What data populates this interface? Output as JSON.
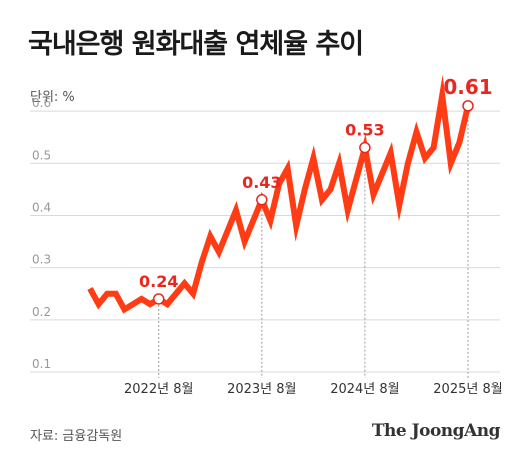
{
  "header": {
    "title": "국내은행 원화대출 연체율 추이",
    "unit": "단위: %"
  },
  "footer": {
    "source": "자료: 금융감독원",
    "brand": "The JoongAng"
  },
  "colors": {
    "line": "#ff3c14",
    "label": "#e8281e",
    "grid": "#d9d9d9",
    "axis_text": "#999999",
    "tick_text": "#333333"
  },
  "chart_data": {
    "type": "line",
    "title": "국내은행 원화대출 연체율 추이",
    "ylabel": "단위: %",
    "ylim": [
      0.1,
      0.65
    ],
    "y_ticks": [
      "0.1",
      "0.2",
      "0.3",
      "0.4",
      "0.5",
      "0.6"
    ],
    "x_ticks": [
      {
        "label": "2022년 8월",
        "x": "2022-08"
      },
      {
        "label": "2023년 8월",
        "x": "2023-08"
      },
      {
        "label": "2024년 8월",
        "x": "2024-08"
      },
      {
        "label": "2025년 8월",
        "x": "2025-08"
      }
    ],
    "x": [
      "2021-12",
      "2022-01",
      "2022-02",
      "2022-03",
      "2022-04",
      "2022-05",
      "2022-06",
      "2022-07",
      "2022-08",
      "2022-09",
      "2022-10",
      "2022-11",
      "2022-12",
      "2023-01",
      "2023-02",
      "2023-03",
      "2023-04",
      "2023-05",
      "2023-06",
      "2023-07",
      "2023-08",
      "2023-09",
      "2023-10",
      "2023-11",
      "2023-12",
      "2024-01",
      "2024-02",
      "2024-03",
      "2024-04",
      "2024-05",
      "2024-06",
      "2024-07",
      "2024-08",
      "2024-09",
      "2024-10",
      "2024-11",
      "2024-12",
      "2025-01",
      "2025-02",
      "2025-03",
      "2025-04",
      "2025-05",
      "2025-06",
      "2025-07",
      "2025-08"
    ],
    "series": [
      {
        "values": [
          0.26,
          0.23,
          0.25,
          0.25,
          0.22,
          0.23,
          0.24,
          0.23,
          0.24,
          0.23,
          0.25,
          0.27,
          0.25,
          0.31,
          0.36,
          0.33,
          0.37,
          0.41,
          0.35,
          0.39,
          0.43,
          0.39,
          0.46,
          0.49,
          0.38,
          0.45,
          0.51,
          0.43,
          0.45,
          0.5,
          0.41,
          0.47,
          0.53,
          0.44,
          0.48,
          0.52,
          0.42,
          0.5,
          0.56,
          0.51,
          0.53,
          0.63,
          0.5,
          0.54,
          0.61
        ]
      }
    ],
    "annotations": [
      {
        "x": "2022-08",
        "value": 0.24,
        "label": "0.24"
      },
      {
        "x": "2023-08",
        "value": 0.43,
        "label": "0.43"
      },
      {
        "x": "2024-08",
        "value": 0.53,
        "label": "0.53"
      },
      {
        "x": "2025-08",
        "value": 0.61,
        "label": "0.61"
      }
    ],
    "grid": true
  }
}
